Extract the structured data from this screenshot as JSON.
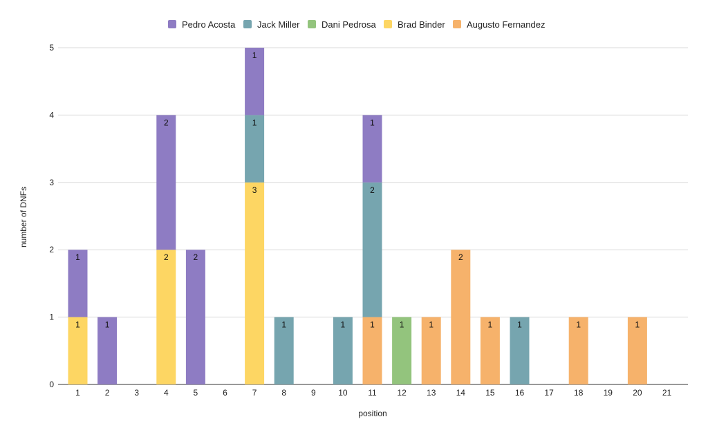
{
  "chart_data": {
    "type": "bar",
    "stacked": true,
    "title": "",
    "xlabel": "position",
    "ylabel": "number of DNFs",
    "ylim": [
      0,
      5
    ],
    "yticks": [
      0,
      1,
      2,
      3,
      4,
      5
    ],
    "grid": true,
    "legend_position": "top-center",
    "categories": [
      "1",
      "2",
      "3",
      "4",
      "5",
      "6",
      "7",
      "8",
      "9",
      "10",
      "11",
      "12",
      "13",
      "14",
      "15",
      "16",
      "17",
      "18",
      "19",
      "20",
      "21"
    ],
    "series": [
      {
        "name": "Brad Binder",
        "color": "#FDD663",
        "values": [
          1,
          0,
          0,
          2,
          0,
          0,
          3,
          0,
          0,
          0,
          0,
          0,
          0,
          0,
          0,
          0,
          0,
          0,
          0,
          0,
          0
        ]
      },
      {
        "name": "Augusto Fernandez",
        "color": "#F6B26B",
        "values": [
          0,
          0,
          0,
          0,
          0,
          0,
          0,
          0,
          0,
          0,
          1,
          0,
          1,
          2,
          1,
          0,
          0,
          1,
          0,
          1,
          0
        ]
      },
      {
        "name": "Dani Pedrosa",
        "color": "#93C47D",
        "values": [
          0,
          0,
          0,
          0,
          0,
          0,
          0,
          0,
          0,
          0,
          0,
          1,
          0,
          0,
          0,
          0,
          0,
          0,
          0,
          0,
          0
        ]
      },
      {
        "name": "Jack Miller",
        "color": "#76A5AF",
        "values": [
          0,
          0,
          0,
          0,
          0,
          0,
          1,
          1,
          0,
          1,
          2,
          0,
          0,
          0,
          0,
          1,
          0,
          0,
          0,
          0,
          0
        ]
      },
      {
        "name": "Pedro Acosta",
        "color": "#8E7CC3",
        "values": [
          1,
          1,
          0,
          2,
          2,
          0,
          1,
          0,
          0,
          0,
          1,
          0,
          0,
          0,
          0,
          0,
          0,
          0,
          0,
          0,
          0
        ]
      }
    ],
    "legend_order": [
      "Pedro Acosta",
      "Jack Miller",
      "Dani Pedrosa",
      "Brad Binder",
      "Augusto Fernandez"
    ]
  }
}
